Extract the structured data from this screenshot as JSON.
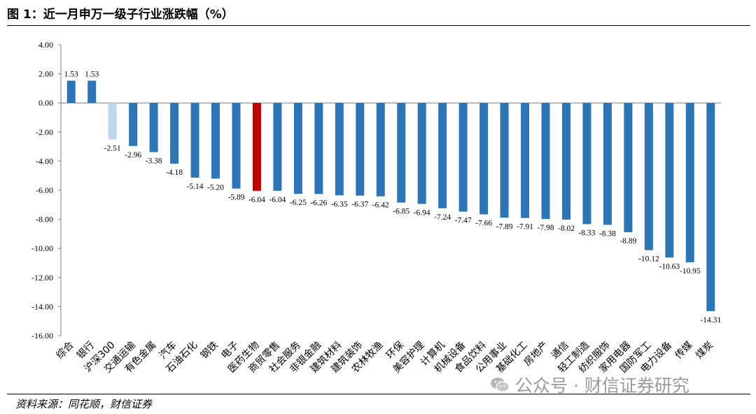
{
  "figure": {
    "title": "图 1：近一月申万一级子行业涨跌幅（%）",
    "source": "资料来源：同花顺，财信证券",
    "watermark": "公众号 · 财信证券研究"
  },
  "chart_data": {
    "type": "bar",
    "title": "近一月申万一级子行业涨跌幅（%）",
    "xlabel": "",
    "ylabel": "",
    "ylim": [
      -16,
      4
    ],
    "yticks": [
      4,
      2,
      0,
      -2,
      -4,
      -6,
      -8,
      -10,
      -12,
      -14,
      -16
    ],
    "ytick_labels": [
      "4.00",
      "2.00",
      "0.00",
      "-2.00",
      "-4.00",
      "-6.00",
      "-8.00",
      "-10.00",
      "-12.00",
      "-14.00",
      "-16.00"
    ],
    "grid": false,
    "legend": "none",
    "categories": [
      "综合",
      "银行",
      "沪深300",
      "交通运输",
      "有色金属",
      "汽车",
      "石油石化",
      "钢铁",
      "电子",
      "医药生物",
      "商贸零售",
      "社会服务",
      "非银金融",
      "建筑材料",
      "建筑装饰",
      "农林牧渔",
      "环保",
      "美容护理",
      "计算机",
      "机械设备",
      "食品饮料",
      "公用事业",
      "基础化工",
      "房地产",
      "通信",
      "轻工制造",
      "纺织服饰",
      "家用电器",
      "国防军工",
      "电力设备",
      "传媒",
      "煤炭"
    ],
    "values": [
      1.53,
      1.53,
      -2.51,
      -2.96,
      -3.38,
      -4.18,
      -5.14,
      -5.2,
      -5.89,
      -6.04,
      -6.04,
      -6.25,
      -6.26,
      -6.35,
      -6.37,
      -6.42,
      -6.85,
      -6.94,
      -7.24,
      -7.47,
      -7.66,
      -7.89,
      -7.91,
      -7.98,
      -8.02,
      -8.33,
      -8.38,
      -8.89,
      -10.12,
      -10.63,
      -10.95,
      -14.31
    ],
    "value_labels": [
      "1.53",
      "1.53",
      "-2.51",
      "-2.96",
      "-3.38",
      "-4.18",
      "-5.14",
      "-5.20",
      "-5.89",
      "-6.04",
      "-6.04",
      "-6.25",
      "-6.26",
      "-6.35",
      "-6.37",
      "-6.42",
      "-6.85",
      "-6.94",
      "-7.24",
      "-7.47",
      "-7.66",
      "-7.89",
      "-7.91",
      "-7.98",
      "-8.02",
      "-8.33",
      "-8.38",
      "-8.89",
      "-10.12",
      "-10.63",
      "-10.95",
      "-14.31"
    ],
    "colors": {
      "default": "#2E75B6",
      "benchmark": "#BDD7EE",
      "highlight": "#C00000"
    },
    "benchmark_category": "沪深300",
    "highlight_category": "医药生物"
  }
}
